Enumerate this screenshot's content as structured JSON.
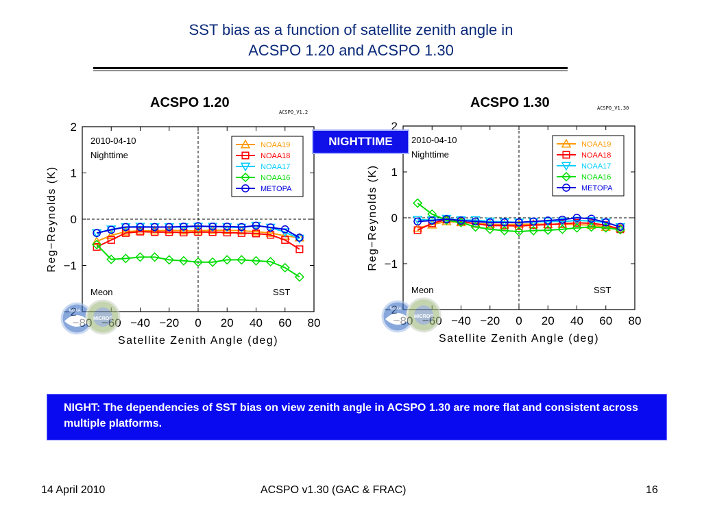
{
  "slide": {
    "title_line1": "SST bias as a function of satellite zenith angle in",
    "title_line2": "ACSPO 1.20 and ACSPO 1.30",
    "badge": "NIGHTTIME",
    "note": "NIGHT: The dependencies of SST bias on view zenith angle in ACSPO 1.30 are more flat and consistent across multiple platforms.",
    "footer_left": "14 April 2010",
    "footer_center": "ACSPO v1.30 (GAC & FRAC)",
    "footer_right": "16",
    "colors": {
      "title": "#0b2a7a",
      "badge_bg": "#1010e8",
      "note_bg": "#0a0af0"
    }
  },
  "chart_data": [
    {
      "type": "line",
      "panel_title": "ACSPO 1.20",
      "tag": "ACSPO_V1.2",
      "date_label": "2010-04-10",
      "time_label": "Nighttime",
      "stat_label": "Meon",
      "var_label": "SST",
      "logo_left": "NOAA",
      "logo_right": "MICROS",
      "xlabel": "Satellite Zenith Angle (deg)",
      "ylabel": "Reg−Reynolds (K)",
      "xlim": [
        -80,
        80
      ],
      "ylim": [
        -2,
        2
      ],
      "xticks": [
        -80,
        -60,
        -40,
        -20,
        0,
        20,
        40,
        60,
        80
      ],
      "yticks": [
        -2,
        -1,
        0,
        1,
        2
      ],
      "x": [
        -70,
        -60,
        -50,
        -40,
        -30,
        -20,
        -10,
        0,
        10,
        20,
        30,
        40,
        50,
        60,
        70
      ],
      "series": [
        {
          "name": "NOAA19",
          "color": "#ff9900",
          "marker": "triangle-up",
          "values": [
            -0.48,
            -0.35,
            -0.27,
            -0.25,
            -0.25,
            -0.24,
            -0.25,
            -0.25,
            -0.24,
            -0.24,
            -0.25,
            -0.27,
            -0.3,
            -0.36,
            -0.4
          ]
        },
        {
          "name": "NOAA18",
          "color": "#ff0000",
          "marker": "square",
          "values": [
            -0.6,
            -0.45,
            -0.3,
            -0.27,
            -0.28,
            -0.28,
            -0.29,
            -0.28,
            -0.28,
            -0.29,
            -0.3,
            -0.31,
            -0.34,
            -0.45,
            -0.65
          ]
        },
        {
          "name": "NOAA17",
          "color": "#00ccff",
          "marker": "triangle-down",
          "values": [
            -0.3,
            -0.22,
            -0.17,
            -0.16,
            -0.17,
            -0.17,
            -0.17,
            -0.16,
            -0.16,
            -0.17,
            -0.18,
            -0.14,
            -0.18,
            -0.28,
            -0.42
          ]
        },
        {
          "name": "NOAA16",
          "color": "#00dd00",
          "marker": "diamond",
          "values": [
            -0.55,
            -0.87,
            -0.85,
            -0.82,
            -0.82,
            -0.88,
            -0.9,
            -0.93,
            -0.93,
            -0.88,
            -0.88,
            -0.9,
            -0.92,
            -1.05,
            -1.25
          ]
        },
        {
          "name": "METOPA",
          "color": "#0000dd",
          "marker": "circle",
          "values": [
            -0.3,
            -0.23,
            -0.17,
            -0.17,
            -0.17,
            -0.17,
            -0.16,
            -0.15,
            -0.16,
            -0.16,
            -0.17,
            -0.14,
            -0.18,
            -0.22,
            -0.4
          ]
        }
      ]
    },
    {
      "type": "line",
      "panel_title": "ACSPO 1.30",
      "tag": "ACSPO_V1.30",
      "date_label": "2010-04-10",
      "time_label": "Nighttime",
      "stat_label": "Meon",
      "var_label": "SST",
      "logo_left": "NOAA",
      "logo_right": "MICROS",
      "xlabel": "Satellite Zenith Angle (deg)",
      "ylabel": "Reg−Reynolds (K)",
      "xlim": [
        -80,
        80
      ],
      "ylim": [
        -2,
        2
      ],
      "xticks": [
        -80,
        -60,
        -40,
        -20,
        0,
        20,
        40,
        60,
        80
      ],
      "yticks": [
        -2,
        -1,
        0,
        1,
        2
      ],
      "x": [
        -70,
        -60,
        -50,
        -40,
        -30,
        -20,
        -10,
        0,
        10,
        20,
        30,
        40,
        50,
        60,
        70
      ],
      "series": [
        {
          "name": "NOAA19",
          "color": "#ff9900",
          "marker": "triangle-up",
          "values": [
            -0.22,
            -0.15,
            -0.08,
            -0.1,
            -0.12,
            -0.14,
            -0.15,
            -0.14,
            -0.14,
            -0.14,
            -0.14,
            -0.15,
            -0.16,
            -0.2,
            -0.22
          ]
        },
        {
          "name": "NOAA18",
          "color": "#ff0000",
          "marker": "square",
          "values": [
            -0.27,
            -0.12,
            -0.04,
            -0.08,
            -0.13,
            -0.17,
            -0.17,
            -0.18,
            -0.16,
            -0.15,
            -0.13,
            -0.11,
            -0.12,
            -0.16,
            -0.25
          ]
        },
        {
          "name": "NOAA17",
          "color": "#00ccff",
          "marker": "triangle-down",
          "values": [
            -0.04,
            -0.05,
            -0.02,
            -0.05,
            -0.05,
            -0.08,
            -0.09,
            -0.1,
            -0.09,
            -0.08,
            -0.08,
            -0.06,
            -0.07,
            -0.1,
            -0.2
          ]
        },
        {
          "name": "NOAA16",
          "color": "#00dd00",
          "marker": "diamond",
          "values": [
            0.32,
            0.08,
            -0.05,
            -0.1,
            -0.2,
            -0.25,
            -0.28,
            -0.3,
            -0.28,
            -0.27,
            -0.25,
            -0.22,
            -0.2,
            -0.22,
            -0.26
          ]
        },
        {
          "name": "METOPA",
          "color": "#0000dd",
          "marker": "circle",
          "values": [
            -0.08,
            -0.06,
            -0.03,
            -0.06,
            -0.08,
            -0.1,
            -0.1,
            -0.1,
            -0.08,
            -0.06,
            -0.04,
            0.0,
            -0.02,
            -0.1,
            -0.2
          ]
        }
      ]
    }
  ]
}
